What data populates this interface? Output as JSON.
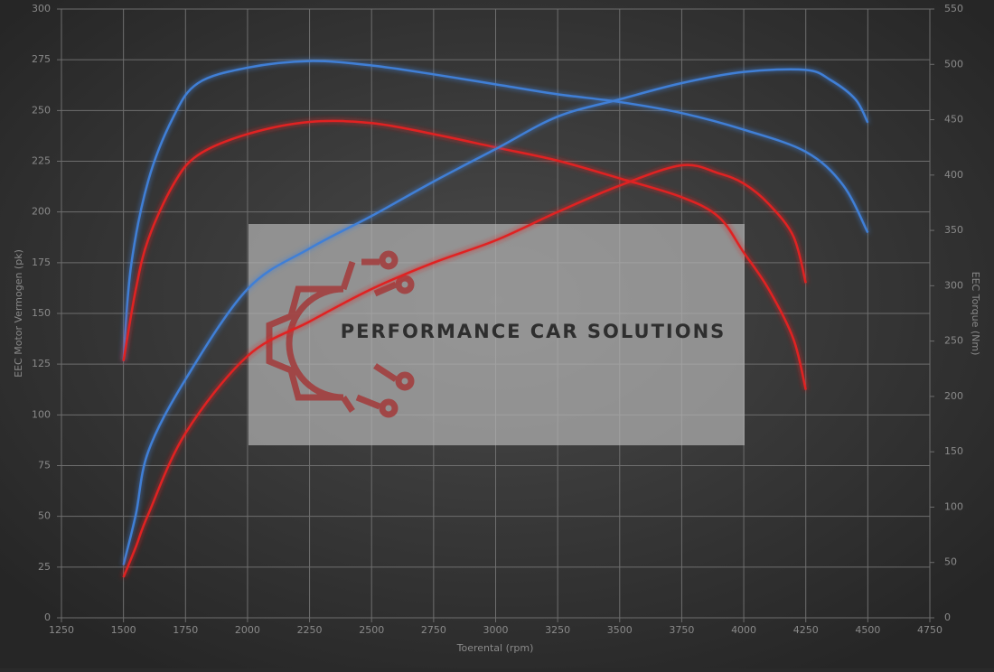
{
  "chart_data": {
    "type": "line",
    "xlabel": "Toerental (rpm)",
    "ylabel": "EEC Motor Vermogen (pk)",
    "y2label": "EEC Torque (Nm)",
    "watermark": "PERFORMANCE CAR SOLUTIONS",
    "xlim": [
      1250,
      4750
    ],
    "xticks": [
      1250,
      1500,
      1750,
      2000,
      2250,
      2500,
      2750,
      3000,
      3250,
      3500,
      3750,
      4000,
      4250,
      4500,
      4750
    ],
    "ylim": [
      0,
      300
    ],
    "yticks": [
      0,
      25,
      50,
      75,
      100,
      125,
      150,
      175,
      200,
      225,
      250,
      275,
      300
    ],
    "y2lim": [
      0,
      550
    ],
    "y2ticks": [
      0,
      50,
      100,
      150,
      200,
      250,
      300,
      350,
      400,
      450,
      500,
      550
    ],
    "grid": true,
    "series": [
      {
        "color": "#3f7fd6",
        "axis": "y2",
        "x": [
          1500,
          1530,
          1600,
          1700,
          1800,
          2000,
          2250,
          2500,
          2750,
          3000,
          3250,
          3500,
          3750,
          4000,
          4250,
          4400,
          4500
        ],
        "values": [
          232,
          317,
          395,
          452,
          483,
          497,
          503,
          499,
          491,
          482,
          473,
          466,
          456,
          441,
          421,
          391,
          348
        ]
      },
      {
        "color": "#e02424",
        "axis": "y2",
        "x": [
          1500,
          1550,
          1600,
          1700,
          1800,
          2000,
          2250,
          2500,
          2750,
          3000,
          3250,
          3500,
          3750,
          3900,
          4000,
          4100,
          4200,
          4250
        ],
        "values": [
          232,
          297,
          342,
          391,
          418,
          437,
          448,
          447,
          437,
          425,
          413,
          397,
          380,
          362,
          330,
          297,
          252,
          206
        ]
      },
      {
        "color": "#3f7fd6",
        "x": [
          1500,
          1550,
          1600,
          1750,
          2000,
          2250,
          2500,
          2750,
          3000,
          3250,
          3500,
          3750,
          4000,
          4250,
          4350,
          4450,
          4500
        ],
        "values": [
          26,
          51,
          82,
          117.5,
          162,
          182,
          198,
          215,
          231,
          247,
          255.5,
          263.5,
          269,
          270,
          265,
          255.5,
          244
        ]
      },
      {
        "color": "#e02424",
        "x": [
          1500,
          1550,
          1600,
          1750,
          2000,
          2250,
          2500,
          2750,
          3000,
          3250,
          3500,
          3750,
          3900,
          4000,
          4100,
          4200,
          4250
        ],
        "values": [
          20,
          35,
          51,
          91,
          129,
          146,
          162,
          175,
          186,
          200,
          213,
          223,
          219,
          214,
          204,
          188,
          165
        ]
      }
    ]
  }
}
